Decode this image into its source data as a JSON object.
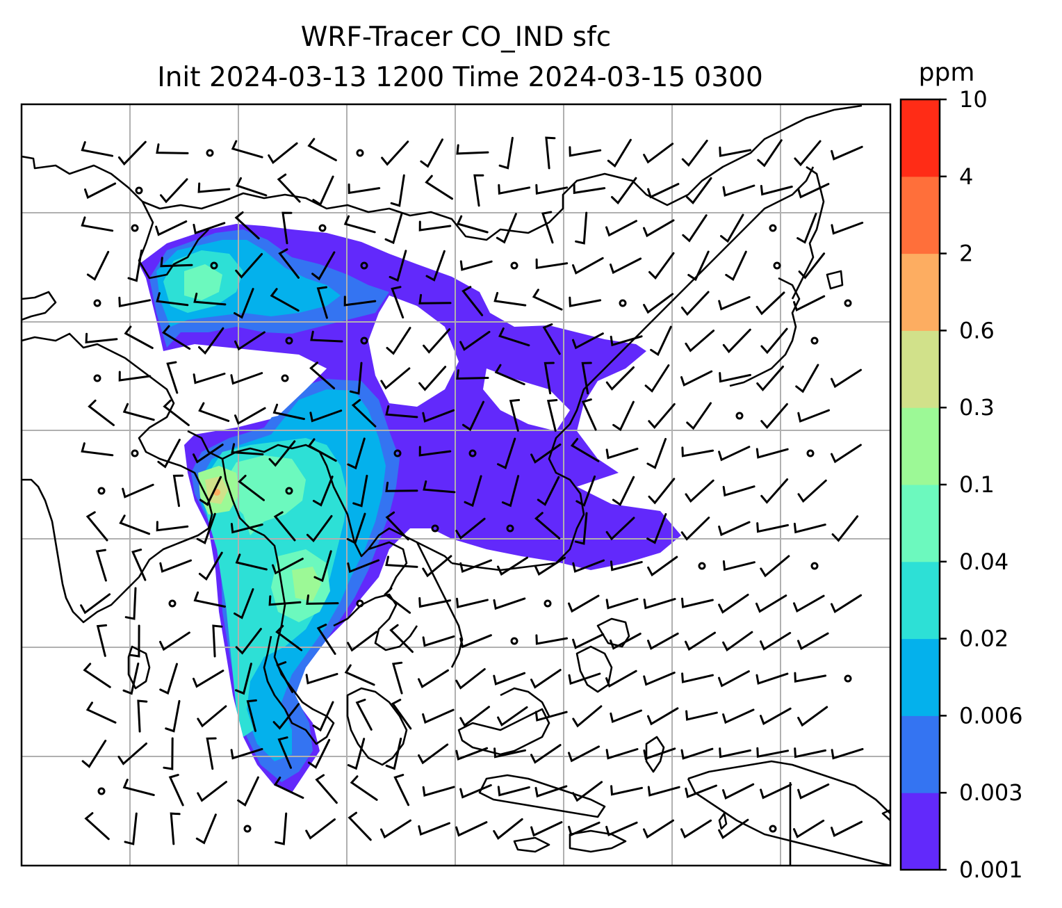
{
  "title": {
    "line1": "WRF-Tracer CO_IND sfc",
    "line2": "Init 2024-03-13 1200 Time 2024-03-15 0300"
  },
  "colorbar": {
    "unit": "ppm",
    "levels": [
      "0.001",
      "0.003",
      "0.006",
      "0.02",
      "0.04",
      "0.1",
      "0.3",
      "0.6",
      "2",
      "4",
      "10"
    ],
    "colors": [
      "#6229fb",
      "#3474f2",
      "#04b1ec",
      "#2de0d6",
      "#6cf9be",
      "#9cf996",
      "#d1e18a",
      "#fdad61",
      "#ff6f3a",
      "#ff2c16"
    ]
  },
  "map": {
    "frame_color": "#000000",
    "grid_color": "#b0b0b0",
    "coastline_color": "#000000",
    "wind_barb_color": "#000000"
  }
}
